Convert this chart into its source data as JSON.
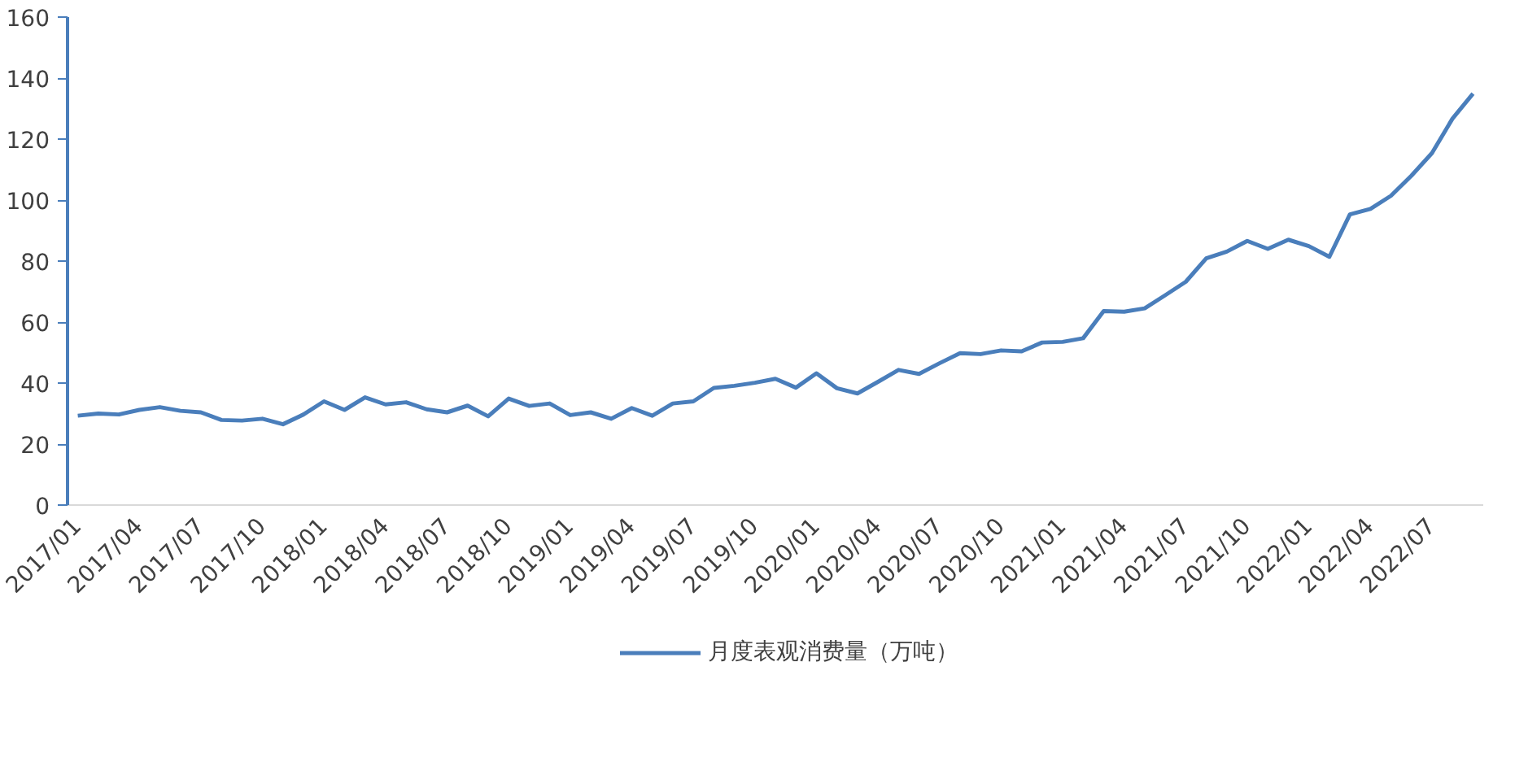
{
  "chart_data": {
    "type": "line",
    "categories": [
      "2017/01",
      null,
      null,
      "2017/04",
      null,
      null,
      "2017/07",
      null,
      null,
      "2017/10",
      null,
      null,
      "2018/01",
      null,
      null,
      "2018/04",
      null,
      null,
      "2018/07",
      null,
      null,
      "2018/10",
      null,
      null,
      "2019/01",
      null,
      null,
      "2019/04",
      null,
      null,
      "2019/07",
      null,
      null,
      "2019/10",
      null,
      null,
      "2020/01",
      null,
      null,
      "2020/04",
      null,
      null,
      "2020/07",
      null,
      null,
      "2020/10",
      null,
      null,
      "2021/01",
      null,
      null,
      "2021/04",
      null,
      null,
      "2021/07",
      null,
      null,
      "2021/10",
      null,
      null,
      "2022/01",
      null,
      null,
      "2022/04",
      null,
      null,
      "2022/07",
      null,
      null
    ],
    "series": [
      {
        "name": "月度表观消费量（万吨）",
        "color": "#4a7ebb",
        "values": [
          29.3,
          30,
          29.7,
          31.2,
          32.1,
          30.9,
          30.4,
          27.9,
          27.7,
          28.3,
          26.5,
          29.7,
          34,
          31.2,
          35.3,
          33,
          33.7,
          31.4,
          30.4,
          32.6,
          29.1,
          34.9,
          32.5,
          33.3,
          29.5,
          30.4,
          28.3,
          31.8,
          29.3,
          33.3,
          34,
          38.4,
          39.1,
          40.1,
          41.4,
          38.5,
          43.2,
          38.3,
          36.6,
          40.4,
          44.3,
          43,
          46.5,
          49.8,
          49.5,
          50.7,
          50.4,
          53.3,
          53.5,
          54.7,
          63.6,
          63.4,
          64.5,
          68.8,
          73.2,
          80.9,
          83.1,
          86.6,
          84,
          87,
          84.9,
          81.4,
          95.3,
          97.1,
          101.4,
          108,
          115.4,
          126.7,
          134.9
        ]
      }
    ],
    "ylim": [
      0,
      160
    ],
    "yticks": [
      0,
      20,
      40,
      60,
      80,
      100,
      120,
      140,
      160
    ],
    "grid": false,
    "legend": "bottom",
    "line_style": "solid",
    "marker": "none"
  }
}
